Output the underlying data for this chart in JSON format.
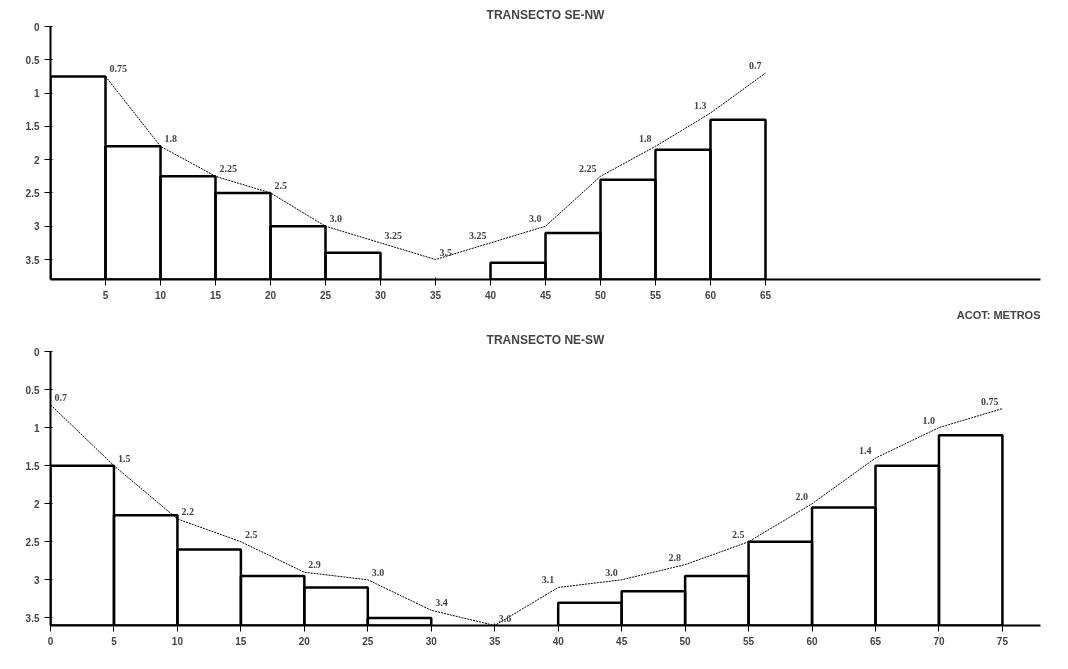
{
  "chart_data": [
    {
      "type": "line",
      "title": "TRANSECTO SE-NW",
      "xlim": [
        0,
        90
      ],
      "xticks": [
        5,
        10,
        15,
        20,
        25,
        30,
        35,
        40,
        45,
        50,
        55,
        60,
        65
      ],
      "ylim": [
        3.8,
        0
      ],
      "yticks": [
        0,
        0.5,
        1.0,
        1.5,
        2.0,
        2.5,
        3.0,
        3.5
      ],
      "grid": false,
      "annotations": [
        "ACOT: METROS"
      ],
      "series": [
        {
          "type": "bar",
          "color": "#000000",
          "x": [
            2.5,
            7.5,
            12.5,
            17.5,
            22.5,
            27.5,
            42.5,
            47.5,
            52.5,
            57.5,
            62.5
          ],
          "base": [
            3.8,
            3.8,
            3.8,
            3.8,
            3.8,
            3.8,
            3.8,
            3.8,
            3.8,
            3.8,
            3.8
          ],
          "values": [
            -3.05,
            -2.0,
            -1.55,
            -1.3,
            -0.8,
            -0.4,
            -0.25,
            -0.7,
            -1.5,
            -1.95,
            -2.4
          ]
        },
        {
          "color": "#000000",
          "line_style": "dotted",
          "marker": "none",
          "x": [
            5,
            10,
            15,
            20,
            25,
            30,
            35,
            40,
            45,
            50,
            55,
            60,
            65
          ],
          "values": [
            0.75,
            1.8,
            2.25,
            2.5,
            3.0,
            3.25,
            3.5,
            3.25,
            3.0,
            2.25,
            1.8,
            1.3,
            0.7
          ],
          "value_labels": [
            "0.75",
            "1.8",
            "2.25",
            "2.5",
            "3.0",
            "3.25",
            "3.5",
            "3.25",
            "3.0",
            "2.25",
            "1.8",
            "1.3",
            "0.7"
          ]
        }
      ]
    },
    {
      "type": "line",
      "title": "TRANSECTO NE-SW",
      "xlim": [
        0,
        78
      ],
      "xticks": [
        0,
        5,
        10,
        15,
        20,
        25,
        30,
        35,
        40,
        45,
        50,
        55,
        60,
        65,
        70,
        75
      ],
      "ylim": [
        3.6,
        0
      ],
      "yticks": [
        0,
        0.5,
        1.0,
        1.5,
        2.0,
        2.5,
        3.0,
        3.5
      ],
      "grid": false,
      "series": [
        {
          "type": "bar",
          "color": "#000000",
          "x": [
            2.5,
            7.5,
            12.5,
            17.5,
            22.5,
            27.5,
            42.5,
            47.5,
            52.5,
            57.5,
            62.5,
            67.5,
            72.5
          ],
          "base": [
            3.6,
            3.6,
            3.6,
            3.6,
            3.6,
            3.6,
            3.6,
            3.6,
            3.6,
            3.6,
            3.6,
            3.6,
            3.6
          ],
          "values": [
            -2.1,
            -1.45,
            -1.0,
            -0.65,
            -0.5,
            -0.1,
            -0.3,
            -0.45,
            -0.65,
            -1.1,
            -1.55,
            -2.1,
            -2.5
          ]
        },
        {
          "color": "#000000",
          "line_style": "dotted",
          "marker": "none",
          "x": [
            0,
            5,
            10,
            15,
            20,
            25,
            30,
            35,
            40,
            45,
            50,
            55,
            60,
            65,
            70,
            75
          ],
          "values": [
            0.7,
            1.5,
            2.2,
            2.5,
            2.9,
            3.0,
            3.4,
            3.6,
            3.1,
            3.0,
            2.8,
            2.5,
            2.0,
            1.4,
            1.0,
            0.75
          ],
          "value_labels": [
            "0.7",
            "1.5",
            "2.2",
            "2.5",
            "2.9",
            "3.0",
            "3.4",
            "3.6",
            "3.1",
            "3.0",
            "2.8",
            "2.5",
            "2.0",
            "1.4",
            "1.0",
            "0.75"
          ]
        }
      ]
    }
  ]
}
